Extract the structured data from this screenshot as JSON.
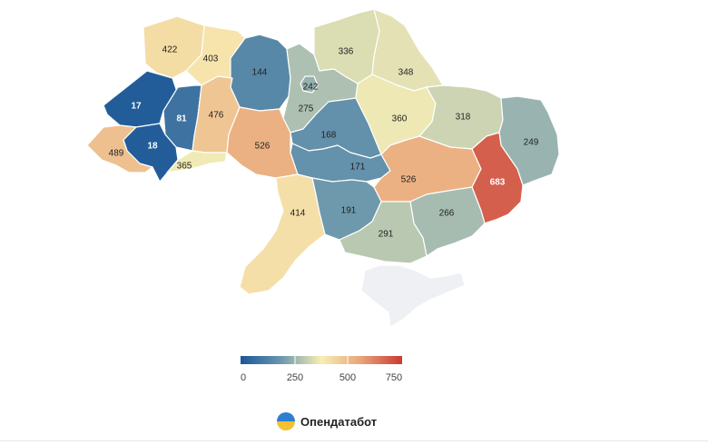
{
  "map": {
    "regions": [
      {
        "id": "volyn",
        "value": 422
      },
      {
        "id": "rivne",
        "value": 403
      },
      {
        "id": "lviv",
        "value": 17
      },
      {
        "id": "zakarpattia",
        "value": 489
      },
      {
        "id": "ivano-frankivsk",
        "value": 18
      },
      {
        "id": "ternopil",
        "value": 81
      },
      {
        "id": "chernivtsi",
        "value": 365
      },
      {
        "id": "khmelnytskyi",
        "value": 476
      },
      {
        "id": "zhytomyr",
        "value": 144
      },
      {
        "id": "vinnytsia",
        "value": 526
      },
      {
        "id": "kyiv-city",
        "value": 242
      },
      {
        "id": "kyiv-oblast",
        "value": 275
      },
      {
        "id": "chernihiv",
        "value": 336
      },
      {
        "id": "sumy",
        "value": 348
      },
      {
        "id": "poltava",
        "value": 360
      },
      {
        "id": "kharkiv",
        "value": 318
      },
      {
        "id": "luhansk",
        "value": 249
      },
      {
        "id": "cherkasy",
        "value": 168
      },
      {
        "id": "kirovohrad",
        "value": 171
      },
      {
        "id": "dnipropetrovsk",
        "value": 526
      },
      {
        "id": "donetsk",
        "value": 683
      },
      {
        "id": "odesa",
        "value": 414
      },
      {
        "id": "mykolaiv",
        "value": 191
      },
      {
        "id": "zaporizhzhia",
        "value": 266
      },
      {
        "id": "kherson",
        "value": 291
      },
      {
        "id": "crimea",
        "value": null
      }
    ],
    "no_data_color": "#eef0f4"
  },
  "legend": {
    "ticks": [
      "0",
      "250",
      "500",
      "750"
    ],
    "stops": [
      "#1b5797",
      "#6b97ad",
      "#f8efb5",
      "#e8a276",
      "#c93a34"
    ],
    "domain": [
      0,
      750
    ]
  },
  "brand": {
    "name": "Опендатабот"
  }
}
